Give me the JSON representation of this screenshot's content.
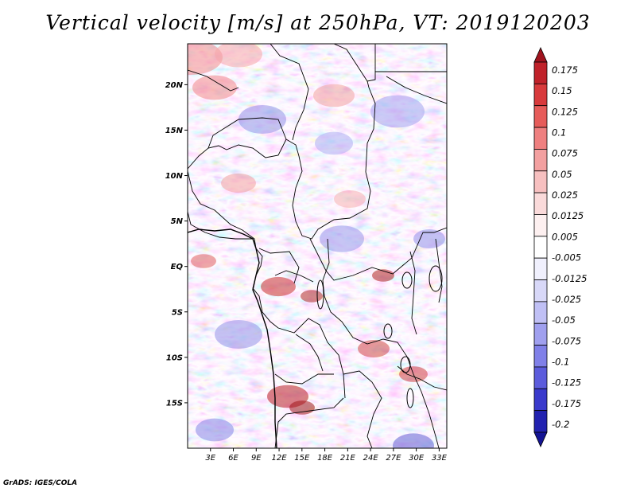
{
  "title": "Vertical velocity [m/s] at 250hPa, VT: 2019120203",
  "credit": "GrADS: IGES/COLA",
  "map": {
    "lon_labels": [
      "3E",
      "6E",
      "9E",
      "12E",
      "15E",
      "18E",
      "21E",
      "24E",
      "27E",
      "30E",
      "33E"
    ],
    "lat_labels": [
      "20N",
      "15N",
      "10N",
      "5N",
      "EQ",
      "5S",
      "10S",
      "15S"
    ],
    "lon_range": [
      0,
      34
    ],
    "lat_range": [
      -20,
      24.5
    ]
  },
  "colorbar": {
    "levels": [
      "0.175",
      "0.15",
      "0.125",
      "0.1",
      "0.075",
      "0.05",
      "0.025",
      "0.0125",
      "0.005",
      "-0.005",
      "-0.0125",
      "-0.025",
      "-0.05",
      "-0.075",
      "-0.1",
      "-0.125",
      "-0.175",
      "-0.2"
    ],
    "colors": [
      "#a0141e",
      "#c0222a",
      "#d83a3c",
      "#e65c5a",
      "#ef8080",
      "#f3a0a0",
      "#f7c0c0",
      "#fadada",
      "#fdf0f0",
      "#ffffff",
      "#f0f0fd",
      "#d8d8f8",
      "#c0c0f5",
      "#a0a0ef",
      "#8080e8",
      "#5c5cdc",
      "#3a3acc",
      "#2222b0",
      "#141494"
    ]
  }
}
